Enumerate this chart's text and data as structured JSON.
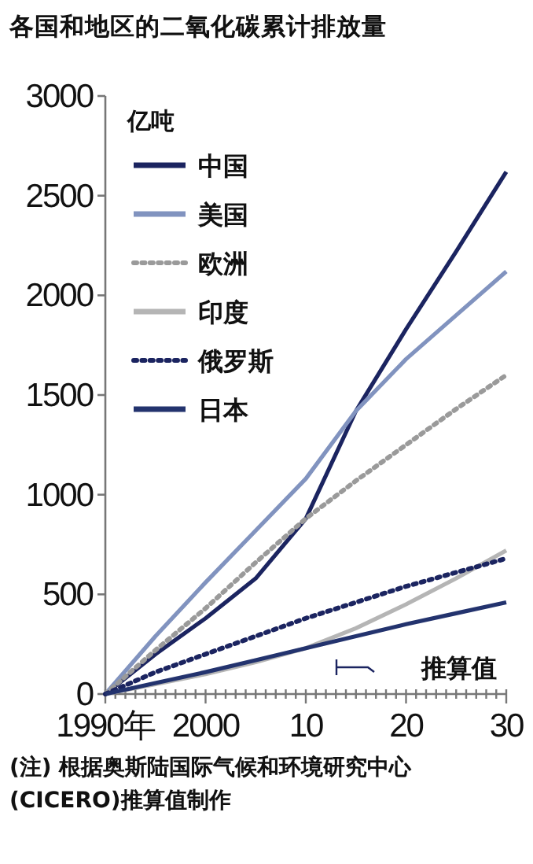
{
  "chart_data": {
    "type": "line",
    "title": "各国和地区的二氧化碳累计排放量",
    "ylabel": "亿吨",
    "x": [
      1990,
      1995,
      2000,
      2005,
      2010,
      2015,
      2020,
      2025,
      2030
    ],
    "series": [
      {
        "name": "中国",
        "color": "#1b2460",
        "line_style": "solid",
        "values": [
          0,
          200,
          380,
          580,
          880,
          1420,
          1830,
          2220,
          2620
        ]
      },
      {
        "name": "美国",
        "color": "#8193bf",
        "line_style": "solid",
        "values": [
          0,
          290,
          560,
          820,
          1080,
          1420,
          1680,
          1900,
          2120
        ]
      },
      {
        "name": "欧洲",
        "color": "#9a9a9a",
        "line_style": "dotted",
        "values": [
          0,
          220,
          430,
          660,
          880,
          1070,
          1250,
          1430,
          1600
        ]
      },
      {
        "name": "印度",
        "color": "#b5b5b5",
        "line_style": "solid",
        "values": [
          0,
          50,
          100,
          160,
          230,
          330,
          450,
          580,
          720
        ]
      },
      {
        "name": "俄罗斯",
        "color": "#1b2460",
        "line_style": "dotted",
        "values": [
          0,
          110,
          200,
          290,
          380,
          460,
          540,
          610,
          680
        ]
      },
      {
        "name": "日本",
        "color": "#23336e",
        "line_style": "solid",
        "values": [
          0,
          55,
          110,
          170,
          230,
          290,
          350,
          405,
          460
        ]
      }
    ],
    "xlim": [
      1990,
      2030
    ],
    "xticks": [
      {
        "value": 1990,
        "label": "1990年"
      },
      {
        "value": 1991,
        "label": null
      },
      {
        "value": 1992,
        "label": null
      },
      {
        "value": 1993,
        "label": null
      },
      {
        "value": 1994,
        "label": null
      },
      {
        "value": 1995,
        "label": null
      },
      {
        "value": 1996,
        "label": null
      },
      {
        "value": 1997,
        "label": null
      },
      {
        "value": 1998,
        "label": null
      },
      {
        "value": 1999,
        "label": null
      },
      {
        "value": 2000,
        "label": "2000"
      },
      {
        "value": 2001,
        "label": null
      },
      {
        "value": 2002,
        "label": null
      },
      {
        "value": 2003,
        "label": null
      },
      {
        "value": 2004,
        "label": null
      },
      {
        "value": 2005,
        "label": null
      },
      {
        "value": 2006,
        "label": null
      },
      {
        "value": 2007,
        "label": null
      },
      {
        "value": 2008,
        "label": null
      },
      {
        "value": 2009,
        "label": null
      },
      {
        "value": 2010,
        "label": "10"
      },
      {
        "value": 2011,
        "label": null
      },
      {
        "value": 2012,
        "label": null
      },
      {
        "value": 2013,
        "label": null
      },
      {
        "value": 2014,
        "label": null
      },
      {
        "value": 2015,
        "label": null
      },
      {
        "value": 2016,
        "label": null
      },
      {
        "value": 2017,
        "label": null
      },
      {
        "value": 2018,
        "label": null
      },
      {
        "value": 2019,
        "label": null
      },
      {
        "value": 2020,
        "label": "20"
      },
      {
        "value": 2021,
        "label": null
      },
      {
        "value": 2022,
        "label": null
      },
      {
        "value": 2023,
        "label": null
      },
      {
        "value": 2024,
        "label": null
      },
      {
        "value": 2025,
        "label": null
      },
      {
        "value": 2026,
        "label": null
      },
      {
        "value": 2027,
        "label": null
      },
      {
        "value": 2028,
        "label": null
      },
      {
        "value": 2029,
        "label": null
      },
      {
        "value": 2030,
        "label": "30"
      }
    ],
    "ylim": [
      0,
      3000
    ],
    "yticks": [
      0,
      500,
      1000,
      1500,
      2000,
      2500,
      3000
    ],
    "grid": false,
    "legend": "top left",
    "annotations": [
      "推算值",
      "(注) 根据奥斯陆国际气候和环境研究中心(CICERO)推算值制作"
    ]
  }
}
